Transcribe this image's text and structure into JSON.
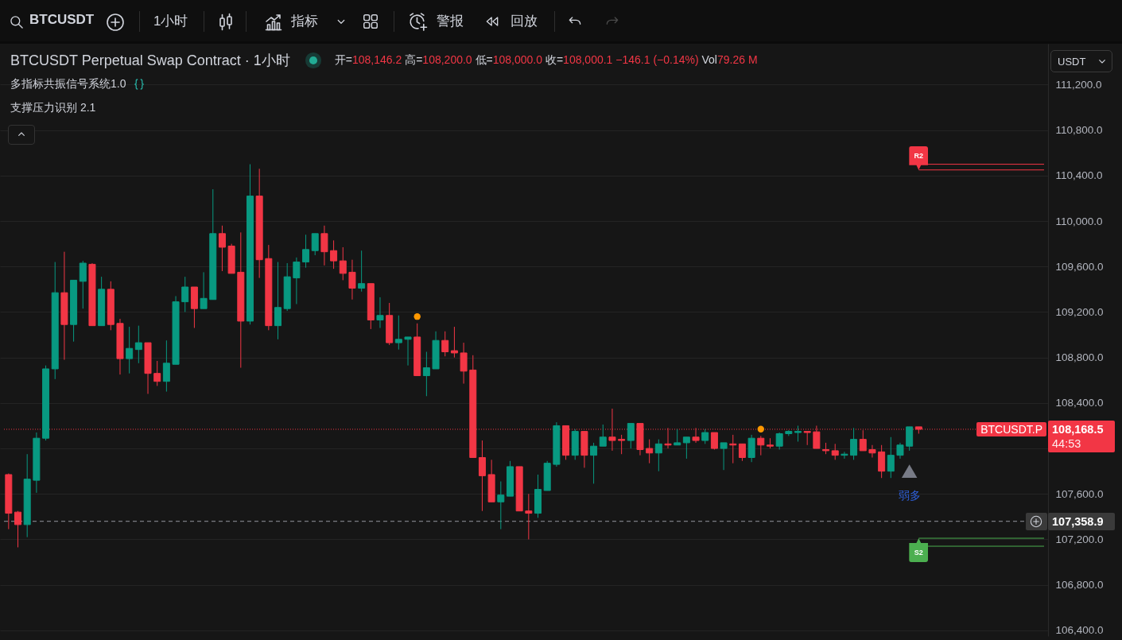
{
  "chart_data": {
    "type": "candlestick",
    "title": "BTCUSDT Perpetual Swap Contract · 1小时",
    "subtitle": "开=108,146.2 高=108,200.0 低=108,000.0 收=108,000.1 −146.1 (−0.14%) Vol79.26 M",
    "annotations": [
      "多指标共振信号系统1.0",
      "支撑压力识别 2.1",
      "BTCUSDT",
      "1小时",
      "指标",
      "警报",
      "回放",
      "USDT",
      "108,168.5",
      "44:53"
    ],
    "categories": [
      null,
      null,
      null,
      null,
      null,
      null,
      null,
      null,
      null,
      null,
      null,
      null,
      null,
      null,
      null,
      null,
      null,
      null,
      null,
      null,
      null,
      null,
      null,
      null,
      null,
      null,
      null,
      null,
      null,
      null,
      null,
      null,
      null,
      null,
      null,
      null,
      null,
      null,
      null,
      null,
      null,
      null,
      null,
      null,
      null,
      null,
      null,
      null,
      null,
      null,
      null,
      null,
      null,
      null,
      null,
      null,
      null,
      null,
      null,
      null,
      null,
      null,
      null,
      null,
      null,
      null,
      null,
      null,
      null,
      null,
      null,
      null,
      null,
      null,
      null,
      null,
      null,
      null,
      null,
      null,
      null,
      null,
      null,
      null,
      null,
      null,
      null,
      null,
      null,
      null,
      null,
      null,
      null,
      null,
      null,
      null,
      null,
      null,
      null,
      null,
      null,
      null,
      null,
      null,
      null,
      null,
      null,
      null,
      null,
      null,
      null,
      null
    ],
    "ohlc": [
      [
        107770,
        107780,
        107290,
        107430
      ],
      [
        107440,
        107450,
        107130,
        107330
      ],
      [
        107330,
        107950,
        107220,
        107730
      ],
      [
        107720,
        108140,
        107610,
        108090
      ],
      [
        108090,
        108730,
        108070,
        108700
      ],
      [
        108700,
        109640,
        108610,
        109370
      ],
      [
        109370,
        109730,
        108780,
        109090
      ],
      [
        109090,
        109480,
        108940,
        109480
      ],
      [
        109470,
        109650,
        109230,
        109630
      ],
      [
        109620,
        109630,
        109080,
        109080
      ],
      [
        109080,
        109510,
        109080,
        109400
      ],
      [
        109400,
        109470,
        109040,
        109090
      ],
      [
        109100,
        109140,
        108650,
        108790
      ],
      [
        108790,
        109070,
        108660,
        108880
      ],
      [
        108870,
        109080,
        108750,
        108930
      ],
      [
        108930,
        108930,
        108480,
        108660
      ],
      [
        108660,
        108770,
        108550,
        108590
      ],
      [
        108590,
        108950,
        108500,
        108750
      ],
      [
        108740,
        109340,
        108740,
        109290
      ],
      [
        109290,
        109510,
        109200,
        109420
      ],
      [
        109420,
        109420,
        109060,
        109230
      ],
      [
        109230,
        109550,
        109230,
        109320
      ],
      [
        109310,
        110280,
        109310,
        109890
      ],
      [
        109890,
        109960,
        109560,
        109770
      ],
      [
        109780,
        109800,
        109540,
        109540
      ],
      [
        109550,
        109900,
        108710,
        109120
      ],
      [
        109120,
        110500,
        109090,
        110220
      ],
      [
        110220,
        110460,
        109500,
        109660
      ],
      [
        109670,
        109790,
        109040,
        109080
      ],
      [
        109080,
        109640,
        108960,
        109240
      ],
      [
        109230,
        109630,
        109210,
        109510
      ],
      [
        109500,
        109680,
        109270,
        109640
      ],
      [
        109640,
        109880,
        109590,
        109750
      ],
      [
        109740,
        109890,
        109700,
        109890
      ],
      [
        109890,
        109960,
        109610,
        109730
      ],
      [
        109740,
        109830,
        109580,
        109650
      ],
      [
        109650,
        109770,
        109480,
        109540
      ],
      [
        109550,
        109660,
        109310,
        109410
      ],
      [
        109410,
        109740,
        109380,
        109450
      ],
      [
        109450,
        109450,
        109050,
        109130
      ],
      [
        109130,
        109330,
        109060,
        109170
      ],
      [
        109170,
        109280,
        108910,
        108930
      ],
      [
        108930,
        109170,
        108870,
        108960
      ],
      [
        108960,
        108980,
        108730,
        108980
      ],
      [
        108980,
        109100,
        108640,
        108640
      ],
      [
        108640,
        108850,
        108460,
        108710
      ],
      [
        108700,
        109030,
        108700,
        108950
      ],
      [
        108950,
        109030,
        108810,
        108850
      ],
      [
        108860,
        109070,
        108800,
        108840
      ],
      [
        108840,
        108930,
        108570,
        108680
      ],
      [
        108690,
        108820,
        107920,
        107920
      ],
      [
        107920,
        108070,
        107450,
        107760
      ],
      [
        107770,
        107900,
        107530,
        107530
      ],
      [
        107530,
        107710,
        107290,
        107590
      ],
      [
        107580,
        107890,
        107580,
        107840
      ],
      [
        107840,
        107840,
        107450,
        107450
      ],
      [
        107450,
        107600,
        107200,
        107430
      ],
      [
        107430,
        107770,
        107390,
        107640
      ],
      [
        107630,
        107890,
        107630,
        107870
      ],
      [
        107860,
        108230,
        107840,
        108200
      ],
      [
        108200,
        108200,
        107900,
        107940
      ],
      [
        107940,
        108170,
        107900,
        108150
      ],
      [
        108150,
        108150,
        107830,
        107940
      ],
      [
        107940,
        108050,
        107690,
        108020
      ],
      [
        108020,
        108210,
        108020,
        108100
      ],
      [
        108100,
        108350,
        107980,
        108070
      ],
      [
        108080,
        108120,
        107950,
        108070
      ],
      [
        108070,
        108220,
        108000,
        108220
      ],
      [
        108220,
        108220,
        107940,
        107990
      ],
      [
        108000,
        108080,
        107870,
        107960
      ],
      [
        107960,
        108080,
        107800,
        108040
      ],
      [
        108040,
        108180,
        108000,
        108030
      ],
      [
        108030,
        108170,
        108030,
        108050
      ],
      [
        108050,
        108100,
        107910,
        108100
      ],
      [
        108100,
        108180,
        108050,
        108070
      ],
      [
        108070,
        108170,
        108040,
        108140
      ],
      [
        108140,
        108140,
        107990,
        108000
      ],
      [
        108000,
        108050,
        107810,
        108050
      ],
      [
        108040,
        108120,
        107870,
        108030
      ],
      [
        108040,
        108040,
        107890,
        107920
      ],
      [
        107920,
        108120,
        107880,
        108090
      ],
      [
        108090,
        108110,
        107940,
        108030
      ],
      [
        108030,
        108090,
        108000,
        108020
      ],
      [
        108020,
        108140,
        107990,
        108130
      ],
      [
        108130,
        108160,
        108110,
        108150
      ],
      [
        108140,
        108200,
        108060,
        108150
      ],
      [
        108150,
        108150,
        108030,
        108140
      ],
      [
        108146.2,
        108200.0,
        108000.0,
        108000.1
      ],
      [
        107990,
        108050,
        107950,
        107980
      ],
      [
        107980,
        108040,
        107900,
        107940
      ],
      [
        107940,
        107970,
        107910,
        107950
      ],
      [
        107940,
        108180,
        107900,
        108080
      ],
      [
        108080,
        108160,
        107980,
        107980
      ],
      [
        107990,
        108030,
        107920,
        107960
      ],
      [
        107970,
        108030,
        107740,
        107800
      ],
      [
        107800,
        108100,
        107740,
        107940
      ],
      [
        107940,
        108050,
        107910,
        108030
      ],
      [
        108020,
        108190,
        107980,
        108190
      ],
      [
        108190,
        108190,
        108130,
        108168.5
      ],
      null,
      null,
      null,
      null,
      null,
      null,
      null,
      null,
      null,
      null,
      null,
      null,
      null
    ],
    "colors": [
      "#f23645",
      "#f23645",
      "#089981",
      "#089981",
      "#089981",
      "#089981",
      "#f23645",
      "#089981",
      "#089981",
      "#f23645",
      "#089981",
      "#f23645",
      "#f23645",
      "#089981",
      "#089981",
      "#f23645",
      "#f23645",
      "#089981",
      "#089981",
      "#089981",
      "#f23645",
      "#089981",
      "#089981",
      "#f23645",
      "#f23645",
      "#f23645",
      "#089981",
      "#f23645",
      "#f23645",
      "#089981",
      "#089981",
      "#089981",
      "#089981",
      "#089981",
      "#f23645",
      "#f23645",
      "#f23645",
      "#f23645",
      "#089981",
      "#f23645",
      "#089981",
      "#f23645",
      "#089981",
      "#089981",
      "#f23645",
      "#089981",
      "#089981",
      "#f23645",
      "#f23645",
      "#f23645",
      "#f23645",
      "#f23645",
      "#f23645",
      "#089981",
      "#089981",
      "#f23645",
      "#f23645",
      "#089981",
      "#089981",
      "#089981",
      "#f23645",
      "#089981",
      "#f23645",
      "#089981",
      "#089981",
      "#f23645",
      "#f23645",
      "#089981",
      "#f23645",
      "#f23645",
      "#089981",
      "#f23645",
      "#089981",
      "#089981",
      "#f23645",
      "#089981",
      "#f23645",
      "#089981",
      "#f23645",
      "#f23645",
      "#089981",
      "#f23645",
      "#f23645",
      "#089981",
      "#089981",
      "#089981",
      "#f23645",
      "#f23645",
      "#f23645",
      "#f23645",
      "#089981",
      "#089981",
      "#f23645",
      "#f23645",
      "#f23645",
      "#089981",
      "#089981",
      "#089981",
      "#f23645",
      null,
      null,
      null,
      null,
      null,
      null,
      null,
      null,
      null,
      null,
      null,
      null,
      null
    ],
    "series": [
      {
        "type": "scatter",
        "marker": "circle",
        "color": "#ff9800",
        "values": [
          null,
          null,
          null,
          null,
          null,
          null,
          null,
          null,
          null,
          null,
          null,
          null,
          null,
          null,
          null,
          null,
          null,
          null,
          null,
          null,
          null,
          null,
          null,
          null,
          null,
          null,
          null,
          null,
          null,
          null,
          null,
          null,
          null,
          null,
          null,
          null,
          null,
          null,
          null,
          null,
          null,
          null,
          null,
          null,
          109160,
          null,
          null,
          null,
          null,
          null,
          null,
          null,
          null,
          null,
          null,
          null,
          null,
          null,
          null,
          null,
          null,
          null,
          null,
          null,
          null,
          null,
          null,
          null,
          null,
          null,
          null,
          null,
          null,
          null,
          null,
          null,
          null,
          null,
          null,
          null,
          null,
          108170,
          null,
          null,
          null,
          null,
          null,
          null,
          null,
          null,
          null,
          null,
          null,
          null,
          null,
          null,
          null,
          null,
          null,
          null,
          null,
          null,
          null,
          null,
          null,
          null,
          null,
          null,
          null,
          null,
          null,
          null
        ]
      },
      {
        "type": "scatter",
        "name": "弱多",
        "marker": "triangle",
        "color": "#787b86",
        "values": [
          null,
          null,
          null,
          null,
          null,
          null,
          null,
          null,
          null,
          null,
          null,
          null,
          null,
          null,
          null,
          null,
          null,
          null,
          null,
          null,
          null,
          null,
          null,
          null,
          null,
          null,
          null,
          null,
          null,
          null,
          null,
          null,
          null,
          null,
          null,
          null,
          null,
          null,
          null,
          null,
          null,
          null,
          null,
          null,
          null,
          null,
          null,
          null,
          null,
          null,
          null,
          null,
          null,
          null,
          null,
          null,
          null,
          null,
          null,
          null,
          null,
          null,
          null,
          null,
          null,
          null,
          null,
          null,
          null,
          null,
          null,
          null,
          null,
          null,
          null,
          null,
          null,
          null,
          null,
          null,
          null,
          null,
          null,
          null,
          null,
          null,
          null,
          null,
          null,
          null,
          null,
          null,
          null,
          null,
          null,
          null,
          null,
          107800,
          null,
          null,
          null,
          null,
          null,
          null,
          null,
          null,
          null,
          null,
          null,
          null,
          null,
          null
        ]
      }
    ],
    "ref_lines": [
      {
        "axis": "y",
        "value": 108168.5,
        "label": "BTCUSDT.P",
        "color": "#f23645",
        "line_style": "dotted"
      },
      {
        "axis": "y",
        "value": 107358.9,
        "label": "107,358.9",
        "color": "#9598a1",
        "line_style": "dashed"
      },
      {
        "axis": "y",
        "value": 110450,
        "label": "R2",
        "color": "#f23645"
      },
      {
        "axis": "y",
        "value": 110500,
        "color": "#f23645"
      },
      {
        "axis": "y",
        "value": 107210,
        "label": "S2",
        "color": "#4caf50"
      },
      {
        "axis": "y",
        "value": 107140,
        "color": "#4caf50"
      }
    ],
    "ylim": [
      106350,
      111560
    ],
    "yticks": [
      {
        "value": 106400,
        "label": "106,400.0"
      },
      {
        "value": 106800,
        "label": "106,800.0"
      },
      {
        "value": 107200,
        "label": "107,200.0"
      },
      {
        "value": 107600,
        "label": "107,600.0"
      },
      {
        "value": 108000,
        "label": null
      },
      {
        "value": 108400,
        "label": "108,400.0"
      },
      {
        "value": 108800,
        "label": "108,800.0"
      },
      {
        "value": 109200,
        "label": "109,200.0"
      },
      {
        "value": 109600,
        "label": "109,600.0"
      },
      {
        "value": 110000,
        "label": "110,000.0"
      },
      {
        "value": 110400,
        "label": "110,400.0"
      },
      {
        "value": 110800,
        "label": "110,800.0"
      },
      {
        "value": 111200,
        "label": "111,200.0"
      }
    ],
    "grid": "y"
  }
}
